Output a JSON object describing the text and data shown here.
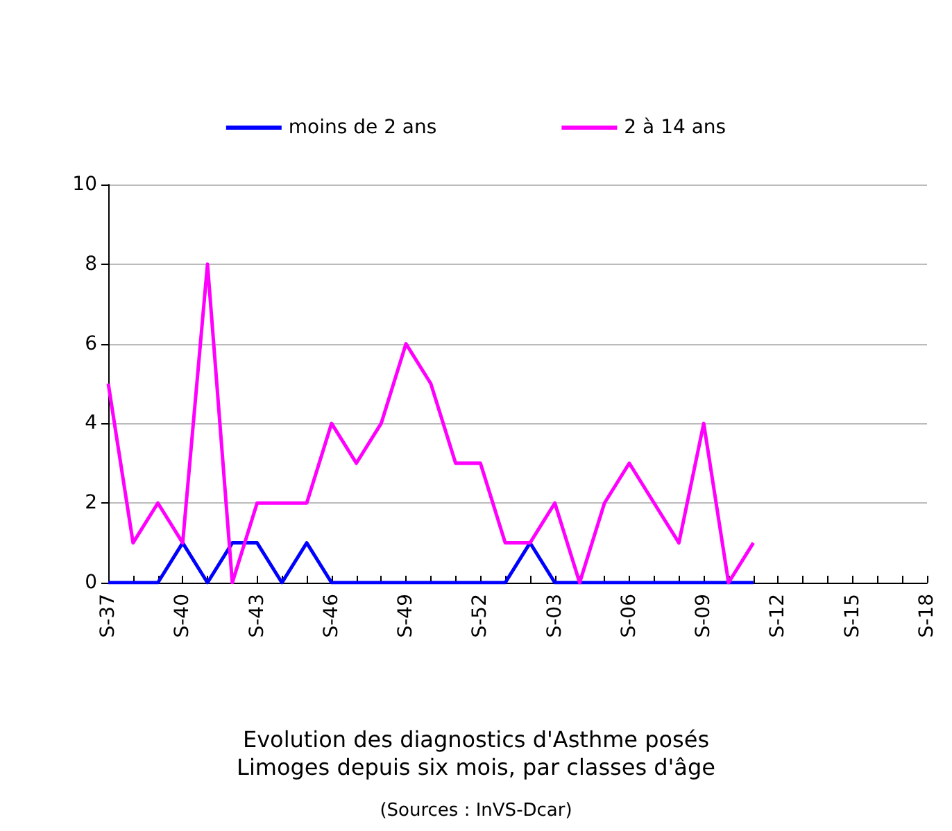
{
  "chart_data": {
    "type": "line",
    "title": "Evolution des diagnostics d'Asthme posés",
    "subtitle": "Limoges depuis six mois, par classes d'âge",
    "annotations": [
      "(Sources : InVS-Dcar)"
    ],
    "categories": [
      "S-37",
      null,
      null,
      "S-40",
      null,
      null,
      "S-43",
      null,
      null,
      "S-46",
      null,
      null,
      "S-49",
      null,
      null,
      "S-52",
      null,
      null,
      "S-03",
      null,
      null,
      "S-06",
      null,
      null,
      "S-09",
      null,
      null,
      "S-12",
      null,
      null,
      "S-15",
      null,
      null,
      "S-18"
    ],
    "series": [
      {
        "name": "moins de 2 ans",
        "color": "#0000ff",
        "values": [
          0,
          0,
          0,
          1,
          0,
          1,
          1,
          0,
          1,
          0,
          0,
          0,
          0,
          0,
          0,
          0,
          0,
          1,
          0,
          0,
          0,
          0,
          0,
          0,
          0,
          0,
          0,
          null,
          null,
          null,
          null,
          null,
          null,
          null
        ]
      },
      {
        "name": "2 à 14 ans",
        "color": "#ff00ff",
        "values": [
          5,
          1,
          2,
          1,
          8,
          0,
          2,
          2,
          2,
          4,
          3,
          4,
          6,
          5,
          3,
          3,
          1,
          1,
          2,
          0,
          2,
          3,
          2,
          1,
          4,
          0,
          1,
          null,
          null,
          null,
          null,
          null,
          null,
          null
        ]
      }
    ],
    "ylim": [
      0,
      10
    ],
    "yticks": [
      0,
      2,
      4,
      6,
      8,
      10
    ],
    "grid": "y",
    "legend": "top",
    "marker": "none",
    "line_style": "solid"
  }
}
